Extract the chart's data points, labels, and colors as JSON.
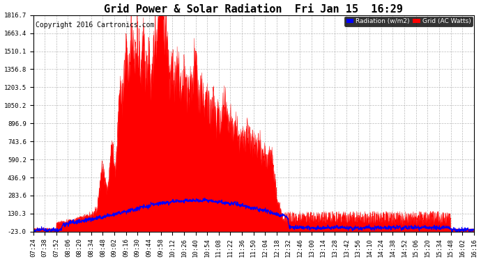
{
  "title": "Grid Power & Solar Radiation  Fri Jan 15  16:29",
  "copyright": "Copyright 2016 Cartronics.com",
  "background_color": "#ffffff",
  "plot_bg_color": "#ffffff",
  "grid_color": "#aaaaaa",
  "y_ticks": [
    -23.0,
    130.3,
    283.6,
    436.9,
    590.2,
    743.6,
    896.9,
    1050.2,
    1203.5,
    1356.8,
    1510.1,
    1663.4,
    1816.7
  ],
  "ylim": [
    -23.0,
    1816.7
  ],
  "legend_radiation_label": "Radiation (w/m2)",
  "legend_grid_label": "Grid (AC Watts)",
  "legend_radiation_bg": "#0000ff",
  "legend_grid_bg": "#ff0000",
  "radiation_color": "#0000ff",
  "grid_power_color": "#ff0000",
  "grid_power_fill_color": "#ff0000",
  "title_fontsize": 11,
  "copyright_fontsize": 7,
  "tick_fontsize": 6.5,
  "x_tick_labels": [
    "07:24",
    "07:38",
    "07:52",
    "08:06",
    "08:20",
    "08:34",
    "08:48",
    "09:02",
    "09:16",
    "09:30",
    "09:44",
    "09:58",
    "10:12",
    "10:26",
    "10:40",
    "10:54",
    "11:08",
    "11:22",
    "11:36",
    "11:50",
    "12:04",
    "12:18",
    "12:32",
    "12:46",
    "13:00",
    "13:14",
    "13:28",
    "13:42",
    "13:56",
    "14:10",
    "14:24",
    "14:38",
    "14:52",
    "15:06",
    "15:20",
    "15:34",
    "15:48",
    "16:02",
    "16:16"
  ],
  "num_points": 2000,
  "figwidth": 6.9,
  "figheight": 3.75,
  "dpi": 100
}
